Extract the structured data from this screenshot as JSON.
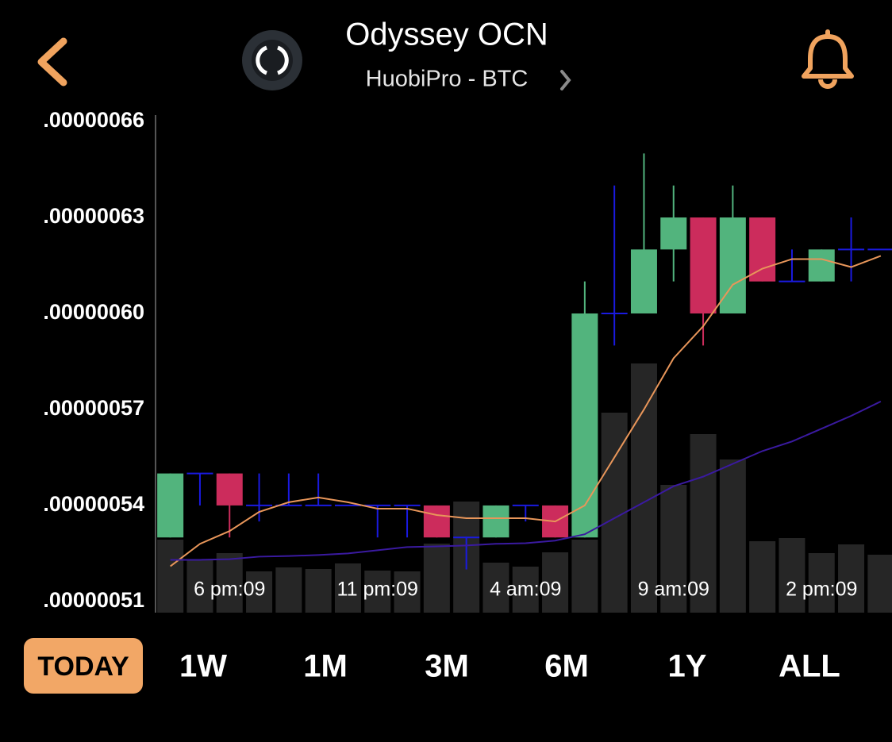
{
  "header": {
    "title": "Odyssey OCN",
    "subtitle": "HuobiPro - BTC"
  },
  "chart_data": {
    "type": "candlestick",
    "categories": [
      null,
      null,
      "6 pm:09",
      null,
      null,
      null,
      null,
      "11 pm:09",
      null,
      null,
      null,
      null,
      "4 am:09",
      null,
      null,
      null,
      null,
      "9 am:09",
      null,
      null,
      null,
      null,
      "2 pm:09",
      null,
      null
    ],
    "open": [
      5.3e-07,
      5.5e-07,
      5.5e-07,
      5.4e-07,
      5.4e-07,
      5.4e-07,
      5.4e-07,
      5.4e-07,
      5.4e-07,
      5.4e-07,
      5.3e-07,
      5.3e-07,
      5.4e-07,
      5.4e-07,
      5.3e-07,
      6e-07,
      6e-07,
      6.2e-07,
      6.3e-07,
      6e-07,
      6.3e-07,
      6.1e-07,
      6.1e-07,
      6.2e-07,
      6.2e-07
    ],
    "high": [
      5.5e-07,
      5.5e-07,
      5.5e-07,
      5.5e-07,
      5.5e-07,
      5.5e-07,
      5.4e-07,
      5.4e-07,
      5.4e-07,
      5.4e-07,
      5.3e-07,
      5.4e-07,
      5.4e-07,
      5.4e-07,
      6.1e-07,
      6.4e-07,
      6.5e-07,
      6.4e-07,
      6.3e-07,
      6.4e-07,
      6.3e-07,
      6.2e-07,
      6.2e-07,
      6.3e-07,
      6.2e-07
    ],
    "low": [
      5.3e-07,
      5.4e-07,
      5.3e-07,
      5.35e-07,
      5.4e-07,
      5.4e-07,
      5.4e-07,
      5.3e-07,
      5.3e-07,
      5.3e-07,
      5.2e-07,
      5.3e-07,
      5.35e-07,
      5.3e-07,
      5.3e-07,
      5.9e-07,
      6e-07,
      6.1e-07,
      5.9e-07,
      6e-07,
      6.1e-07,
      6.1e-07,
      6.1e-07,
      6.1e-07,
      6.2e-07
    ],
    "close": [
      5.5e-07,
      5.5e-07,
      5.4e-07,
      5.4e-07,
      5.4e-07,
      5.4e-07,
      5.4e-07,
      5.4e-07,
      5.4e-07,
      5.3e-07,
      5.3e-07,
      5.4e-07,
      5.4e-07,
      5.3e-07,
      6e-07,
      6e-07,
      6.2e-07,
      6.3e-07,
      6e-07,
      6.3e-07,
      6.1e-07,
      6.1e-07,
      6.2e-07,
      6.2e-07,
      6.2e-07
    ],
    "volume": [
      92,
      67,
      75,
      52,
      57,
      55,
      62,
      53,
      52,
      87,
      140,
      63,
      58,
      76,
      92,
      252,
      314,
      161,
      225,
      193,
      90,
      94,
      75,
      86,
      73
    ],
    "up_color": "#52b47d",
    "down_color": "#cc2c5c",
    "doji_color": "#1a1ae0",
    "volume_color": "#262626",
    "moving_averages": [
      {
        "color": "#e8965a",
        "values": [
          5.21e-07,
          5.28e-07,
          5.32e-07,
          5.38e-07,
          5.41e-07,
          5.425e-07,
          5.41e-07,
          5.39e-07,
          5.39e-07,
          5.37e-07,
          5.36e-07,
          5.36e-07,
          5.36e-07,
          5.35e-07,
          5.4e-07,
          5.55e-07,
          5.7e-07,
          5.86e-07,
          5.96e-07,
          6.09e-07,
          6.14e-07,
          6.17e-07,
          6.17e-07,
          6.145e-07,
          6.18e-07
        ]
      },
      {
        "color": "#3a1aa0",
        "values": [
          5.23e-07,
          5.23e-07,
          5.232e-07,
          5.24e-07,
          5.242e-07,
          5.245e-07,
          5.25e-07,
          5.26e-07,
          5.27e-07,
          5.272e-07,
          5.275e-07,
          5.28e-07,
          5.282e-07,
          5.29e-07,
          5.31e-07,
          5.36e-07,
          5.41e-07,
          5.46e-07,
          5.49e-07,
          5.53e-07,
          5.57e-07,
          5.6e-07,
          5.64e-07,
          5.68e-07,
          5.725e-07
        ]
      }
    ],
    "ylim": [
      5.065e-07,
      6.62e-07
    ],
    "yticks": [
      {
        "value": 6.6e-07,
        "label": ".00000066"
      },
      {
        "value": 6.3e-07,
        "label": ".00000063"
      },
      {
        "value": 6e-07,
        "label": ".00000060"
      },
      {
        "value": 5.7e-07,
        "label": ".00000057"
      },
      {
        "value": 5.4e-07,
        "label": ".00000054"
      },
      {
        "value": 5.1e-07,
        "label": ".00000051"
      }
    ],
    "grid": false
  },
  "periods": [
    {
      "label": "TODAY",
      "selected": true
    },
    {
      "label": "1W",
      "selected": false
    },
    {
      "label": "1M",
      "selected": false
    },
    {
      "label": "3M",
      "selected": false
    },
    {
      "label": "6M",
      "selected": false
    },
    {
      "label": "1Y",
      "selected": false
    },
    {
      "label": "ALL",
      "selected": false
    }
  ]
}
